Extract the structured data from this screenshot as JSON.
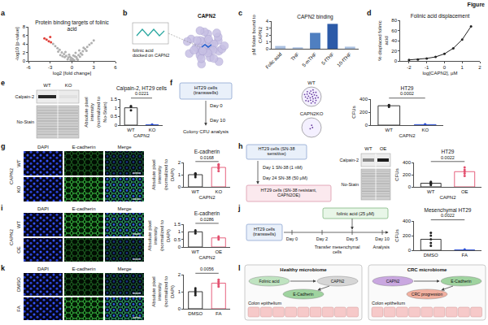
{
  "figure_label": "Figure",
  "panels": [
    {
      "label": "a"
    },
    {
      "label": "b",
      "diagram": {
        "title": "CAPN2",
        "caption": "folinic acid docked on CAPN2"
      }
    },
    {
      "label": "c"
    },
    {
      "label": "d"
    },
    {
      "label": "e",
      "blot": {
        "columns": [
          "WT",
          "KO"
        ],
        "rows": [
          "Calpain-2",
          "No-Stain"
        ]
      }
    },
    {
      "label": "f",
      "scheme": {
        "box": "HT29 cells (transwells)",
        "steps": [
          "Day 0",
          "Day 10"
        ],
        "readout": "Colony CFU analysis"
      },
      "dishes": [
        "WT",
        "CAPN2KO"
      ]
    },
    {
      "label": "g",
      "images": {
        "group": "CAPN2",
        "columns": [
          "DAPI",
          "E-cadherin",
          "Merge"
        ],
        "rows": [
          "WT",
          "KO"
        ]
      }
    },
    {
      "label": "h",
      "scheme": {
        "start": "HT29 cells (SN-38 sensitive)",
        "steps": [
          "Day 1 SN-38 (1 nM)",
          "Day 24 SN-38 (50 µM)"
        ],
        "end": "HT29 cells (SN-38 resistant, CAPN2OE)"
      },
      "blot": {
        "columns": [
          "WT",
          "OE"
        ],
        "rows": [
          "Calpain-2",
          "No-Stain"
        ]
      }
    },
    {
      "label": "i",
      "images": {
        "group": "CAPN2",
        "columns": [
          "DAPI",
          "E-cadherin",
          "Merge"
        ],
        "rows": [
          "WT",
          "OE"
        ]
      }
    },
    {
      "label": "j",
      "scheme": {
        "box": "HT29 cells (transwells)",
        "days": [
          "Day 0",
          "Day 2",
          "Day 5",
          "Day 10"
        ],
        "steps": [
          "Transfer mesenchymal cells",
          "Analysis"
        ],
        "treatment": "folinic acid (25 µM)"
      }
    },
    {
      "label": "k",
      "images": {
        "columns": [
          "DAPI",
          "E-cadherin",
          "Merge"
        ],
        "rows": [
          "DMSO",
          "FA"
        ]
      }
    },
    {
      "label": "l",
      "diagram": {
        "sides": [
          {
            "title": "Healthy microbiome",
            "tissue": "Colon epithelium",
            "nodes": [
              "Folinic acid",
              "CAPN2",
              "E-Cadherin"
            ]
          },
          {
            "title": "CRC microbiome",
            "tissue": "Colon epithelium",
            "nodes": [
              "CAPN2",
              "E-Cadherin",
              "CRC progression"
            ]
          }
        ]
      }
    }
  ],
  "chart_data": [
    {
      "panel": "a",
      "type": "scatter",
      "title": "Protein binding targets of folinic acid",
      "x_label": "log2 [fold change]",
      "y_label": "-log10 [p-value]",
      "series": [
        {
          "color": "#b0b0b0",
          "x": [
            -0.2,
            0.1,
            0.3,
            -0.5,
            0.6,
            -0.8,
            0.9,
            -1.1,
            1.2,
            -1.4,
            1.5,
            -0.3,
            0.4,
            -1.7,
            1.8,
            -2.0,
            2.1,
            -0.6,
            0.7,
            -1.0,
            1.1,
            -2.3,
            2.4,
            0.0,
            -0.1,
            0.2,
            -1.3,
            1.4,
            -2.6,
            2.7,
            -1.9,
            2.0,
            -0.9,
            1.0,
            3.0,
            -0.4,
            0.5,
            1.6,
            -1.6,
            0.8
          ],
          "values": [
            0.3,
            0.5,
            0.2,
            0.8,
            0.9,
            1.2,
            1.4,
            1.6,
            1.8,
            2.0,
            2.3,
            1.0,
            1.1,
            2.6,
            2.8,
            3.0,
            3.3,
            0.4,
            0.5,
            0.9,
            1.0,
            3.5,
            3.8,
            0.1,
            0.7,
            1.3,
            1.1,
            1.5,
            4.0,
            4.2,
            2.2,
            2.4,
            2.1,
            2.5,
            4.8,
            1.5,
            1.9,
            3.1,
            1.4,
            0.3
          ]
        },
        {
          "color": "#e0403a",
          "x": [
            -3.2,
            -3.5,
            -2.9,
            -3.8,
            -3.0
          ],
          "values": [
            4.6,
            5.0,
            4.4,
            5.3,
            5.6
          ]
        }
      ],
      "xlim": [
        -6,
        6
      ],
      "xticks": [
        -6,
        -3,
        0,
        3,
        6
      ],
      "ylim": [
        0,
        8
      ],
      "yticks": [
        0,
        2,
        4,
        6,
        8
      ]
    },
    {
      "panel": "c",
      "type": "bar",
      "title": "CAPN2 binding",
      "y_label": "pM folate bound to CAPN2",
      "categories": [
        "Folic acid",
        "THF",
        "5-mTHF",
        "5-fTHF",
        "10-fTHF"
      ],
      "values": [
        0.4,
        0.2,
        2.3,
        3.6,
        0.3
      ],
      "colors": [
        "#a9bfdf",
        "#a9bfdf",
        "#4f7fc0",
        "#2c5aa8",
        "#a9bfdf"
      ],
      "ylim": [
        0,
        4
      ],
      "yticks": [
        0,
        1,
        2,
        3,
        4
      ]
    },
    {
      "panel": "d",
      "type": "line",
      "title": "Folinic acid displacement",
      "x_label": "log[CAPN2], µM",
      "y_label": "% displaced folinic acid",
      "x": [
        -2,
        -1.5,
        -1,
        -0.5,
        0,
        0.5,
        1,
        1.5
      ],
      "values": [
        2,
        3,
        5,
        8,
        14,
        25,
        42,
        68
      ],
      "color": "#222222",
      "marker": "circle",
      "xlim": [
        -2.5,
        2
      ],
      "xticks": [
        -2,
        -1,
        0,
        1,
        2
      ],
      "ylim": [
        0,
        80
      ],
      "yticks": [
        0,
        20,
        40,
        60,
        80
      ]
    },
    {
      "panel": "e",
      "type": "bar",
      "title": "Calpain-2, HT29 cells",
      "x_label": "CAPN2",
      "y_label": "Absolute pixel intensity (normalized to No-Stain)",
      "categories": [
        "WT",
        "KO"
      ],
      "values": [
        1.0,
        0.02
      ],
      "replicates": [
        [
          0.85,
          1.05,
          1.1
        ],
        [
          0.01,
          0.02,
          0.03
        ]
      ],
      "colors": [
        "#222222",
        "#2b4fd1"
      ],
      "ylim": [
        0,
        1.5
      ],
      "yticks": [
        0,
        0.5,
        1,
        1.5
      ],
      "annotations": [
        "0.0221"
      ]
    },
    {
      "panel": "f",
      "type": "bar",
      "title": "HT29",
      "x_label": "CAPN2",
      "y_label": "CFUs",
      "categories": [
        "WT",
        "KO"
      ],
      "values": [
        298,
        8
      ],
      "replicates": [
        [
          280,
          310,
          305
        ],
        [
          5,
          8,
          12
        ]
      ],
      "colors": [
        "#222222",
        "#2b4fd1"
      ],
      "ylim": [
        0,
        400
      ],
      "yticks": [
        0,
        200,
        400
      ],
      "annotations": [
        "0.0002"
      ]
    },
    {
      "panel": "g",
      "type": "bar",
      "title": "E-cadherin",
      "x_label": "CAPN2",
      "y_label": "Absolute pixel intensity (normalized to DAPI)",
      "categories": [
        "WT",
        "KO"
      ],
      "values": [
        1.0,
        1.6
      ],
      "replicates": [
        [
          0.8,
          0.95,
          1.05,
          1.1,
          1.1
        ],
        [
          1.3,
          1.5,
          1.6,
          1.75,
          1.85
        ]
      ],
      "colors": [
        "#222222",
        "#e3506f"
      ],
      "ylim": [
        0,
        2
      ],
      "yticks": [
        0,
        1,
        2
      ],
      "annotations": [
        "0.0168"
      ]
    },
    {
      "panel": "h",
      "type": "bar",
      "title": "HT29",
      "x_label": "CAPN2",
      "y_label": "CFUs",
      "categories": [
        "WT",
        "OE"
      ],
      "values": [
        60,
        250
      ],
      "replicates": [
        [
          30,
          50,
          60,
          75,
          85
        ],
        [
          180,
          220,
          250,
          280,
          320
        ]
      ],
      "colors": [
        "#222222",
        "#e3506f"
      ],
      "ylim": [
        0,
        400
      ],
      "yticks": [
        0,
        200,
        400
      ],
      "annotations": [
        "0.0022"
      ]
    },
    {
      "panel": "i",
      "type": "bar",
      "title": "E-cadherin",
      "x_label": "CAPN2",
      "y_label": "Absolute pixel intensity (normalized to DAPI)",
      "categories": [
        "WT",
        "OE"
      ],
      "values": [
        1.0,
        0.6
      ],
      "replicates": [
        [
          0.9,
          1.0,
          1.1
        ],
        [
          0.5,
          0.6,
          0.7
        ]
      ],
      "colors": [
        "#222222",
        "#e3506f"
      ],
      "ylim": [
        0,
        1.5
      ],
      "yticks": [
        0,
        0.5,
        1,
        1.5
      ],
      "annotations": [
        "0.0286"
      ]
    },
    {
      "panel": "j",
      "type": "bar",
      "title": "Mesenchymal HT29",
      "y_label": "CFUs",
      "categories": [
        "DMSO",
        "FA"
      ],
      "values": [
        150,
        5
      ],
      "replicates": [
        [
          60,
          100,
          150,
          200,
          240
        ],
        [
          0,
          5,
          10
        ]
      ],
      "colors": [
        "#222222",
        "#2b4fd1"
      ],
      "ylim": [
        0,
        400
      ],
      "yticks": [
        0,
        200,
        400
      ],
      "annotations": [
        "0.0022"
      ]
    },
    {
      "panel": "k",
      "type": "bar",
      "y_label": "Absolute pixel intensity (normalized to DAPI)",
      "categories": [
        "DMSO",
        "FA"
      ],
      "values": [
        1.0,
        1.5
      ],
      "replicates": [
        [
          0.8,
          0.9,
          1.0,
          1.1,
          1.2
        ],
        [
          1.3,
          1.4,
          1.5,
          1.6,
          1.7
        ]
      ],
      "colors": [
        "#222222",
        "#e3506f"
      ],
      "ylim": [
        0,
        2
      ],
      "yticks": [
        0,
        1,
        2
      ],
      "annotations": [
        "0.0056"
      ]
    }
  ]
}
